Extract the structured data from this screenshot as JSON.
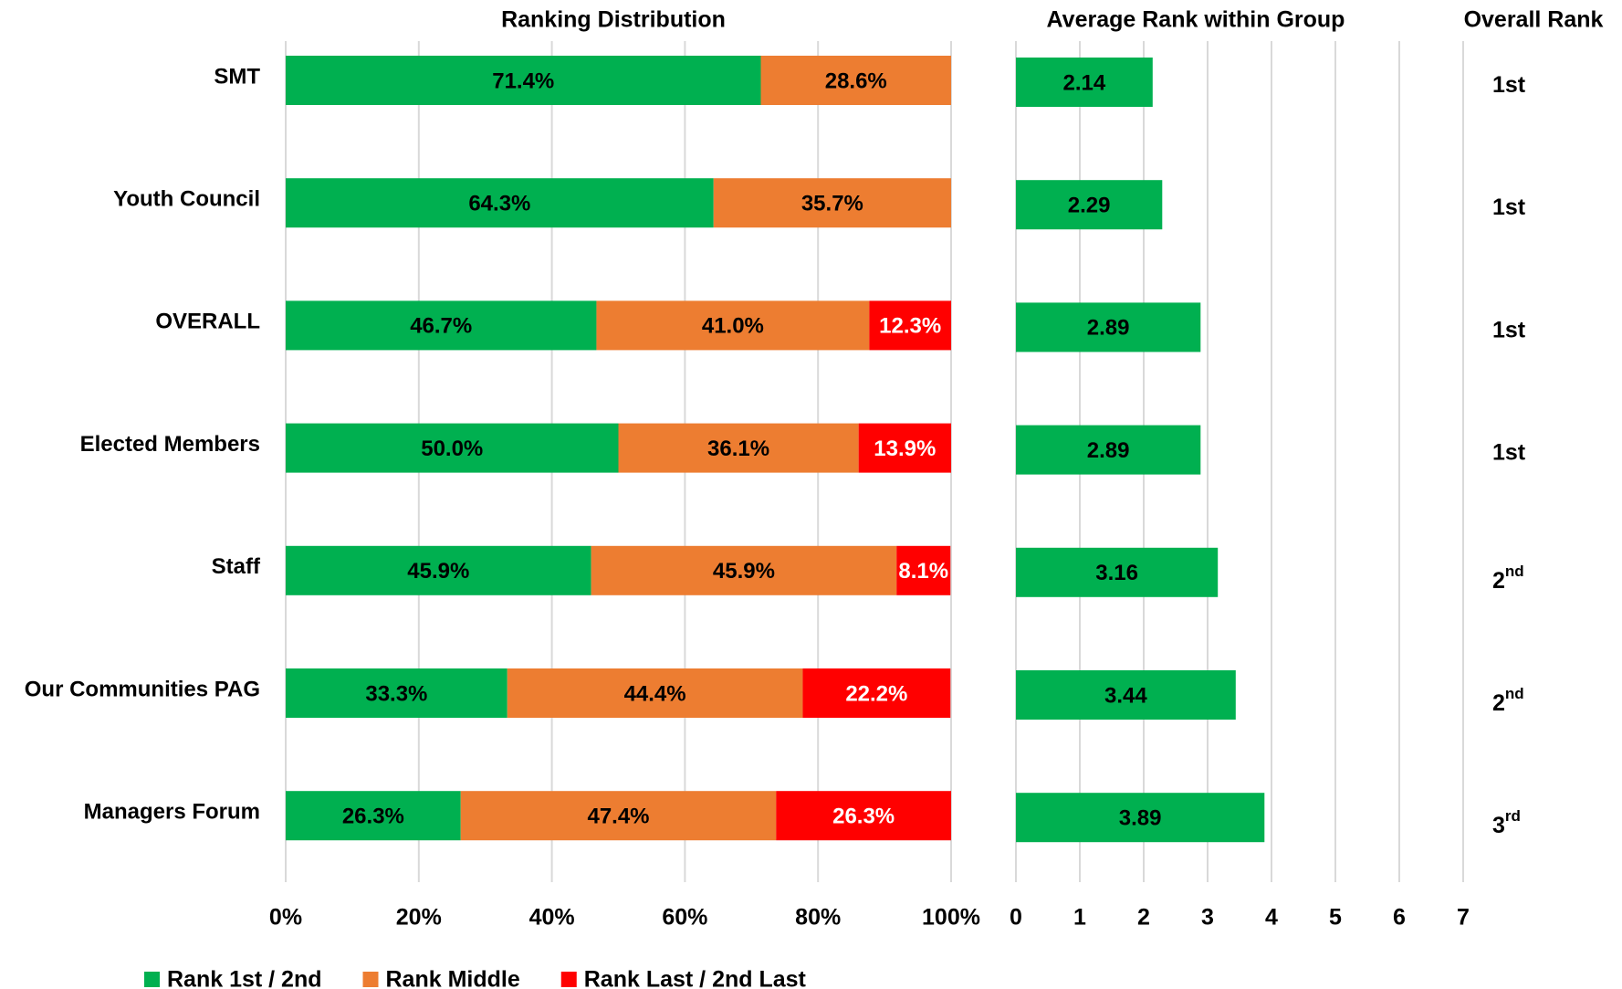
{
  "chart_data": [
    {
      "type": "stacked_bar_horizontal",
      "title": "Ranking Distribution",
      "categories": [
        "SMT",
        "Youth Council",
        "OVERALL",
        "Elected Members",
        "Staff",
        "Our Communities PAG",
        "Managers Forum"
      ],
      "series": [
        {
          "name": "Rank 1st / 2nd",
          "color": "#00b050",
          "label_color": "#000000",
          "values": [
            71.4,
            64.3,
            46.7,
            50.0,
            45.9,
            33.3,
            26.3
          ],
          "value_labels": [
            "71.4%",
            "64.3%",
            "46.7%",
            "50.0%",
            "45.9%",
            "33.3%",
            "26.3%"
          ]
        },
        {
          "name": "Rank Middle",
          "color": "#ed7d31",
          "label_color": "#000000",
          "values": [
            28.6,
            35.7,
            41.0,
            36.1,
            45.9,
            44.4,
            47.4
          ],
          "value_labels": [
            "28.6%",
            "35.7%",
            "41.0%",
            "36.1%",
            "45.9%",
            "44.4%",
            "47.4%"
          ]
        },
        {
          "name": "Rank Last / 2nd Last",
          "color": "#ff0000",
          "label_color": "#ffffff",
          "values": [
            null,
            null,
            12.3,
            13.9,
            8.1,
            22.2,
            26.3
          ],
          "value_labels": [
            null,
            null,
            "12.3%",
            "13.9%",
            "8.1%",
            "22.2%",
            "26.3%"
          ]
        }
      ],
      "xlim": [
        0,
        100
      ],
      "xticks": [
        {
          "value": 0,
          "label": "0%"
        },
        {
          "value": 20,
          "label": "20%"
        },
        {
          "value": 40,
          "label": "40%"
        },
        {
          "value": 60,
          "label": "60%"
        },
        {
          "value": 80,
          "label": "80%"
        },
        {
          "value": 100,
          "label": "100%"
        }
      ],
      "grid": true,
      "legend": "bottom"
    },
    {
      "type": "bar_horizontal",
      "title": "Average Rank within Group",
      "values": [
        2.14,
        2.29,
        2.89,
        2.89,
        3.16,
        3.44,
        3.89
      ],
      "color": "#00b050",
      "xlim": [
        0,
        7
      ],
      "xticks": [
        0,
        1,
        2,
        3,
        4,
        5,
        6,
        7
      ],
      "grid": true
    }
  ],
  "overall_rank": {
    "title": "Overall Rank",
    "ranks": [
      {
        "base": "1st"
      },
      {
        "base": "1st"
      },
      {
        "base": "1st"
      },
      {
        "base": "1st"
      },
      {
        "base": "2",
        "sup": "nd"
      },
      {
        "base": "2",
        "sup": "nd"
      },
      {
        "base": "3",
        "sup": "rd"
      }
    ]
  }
}
